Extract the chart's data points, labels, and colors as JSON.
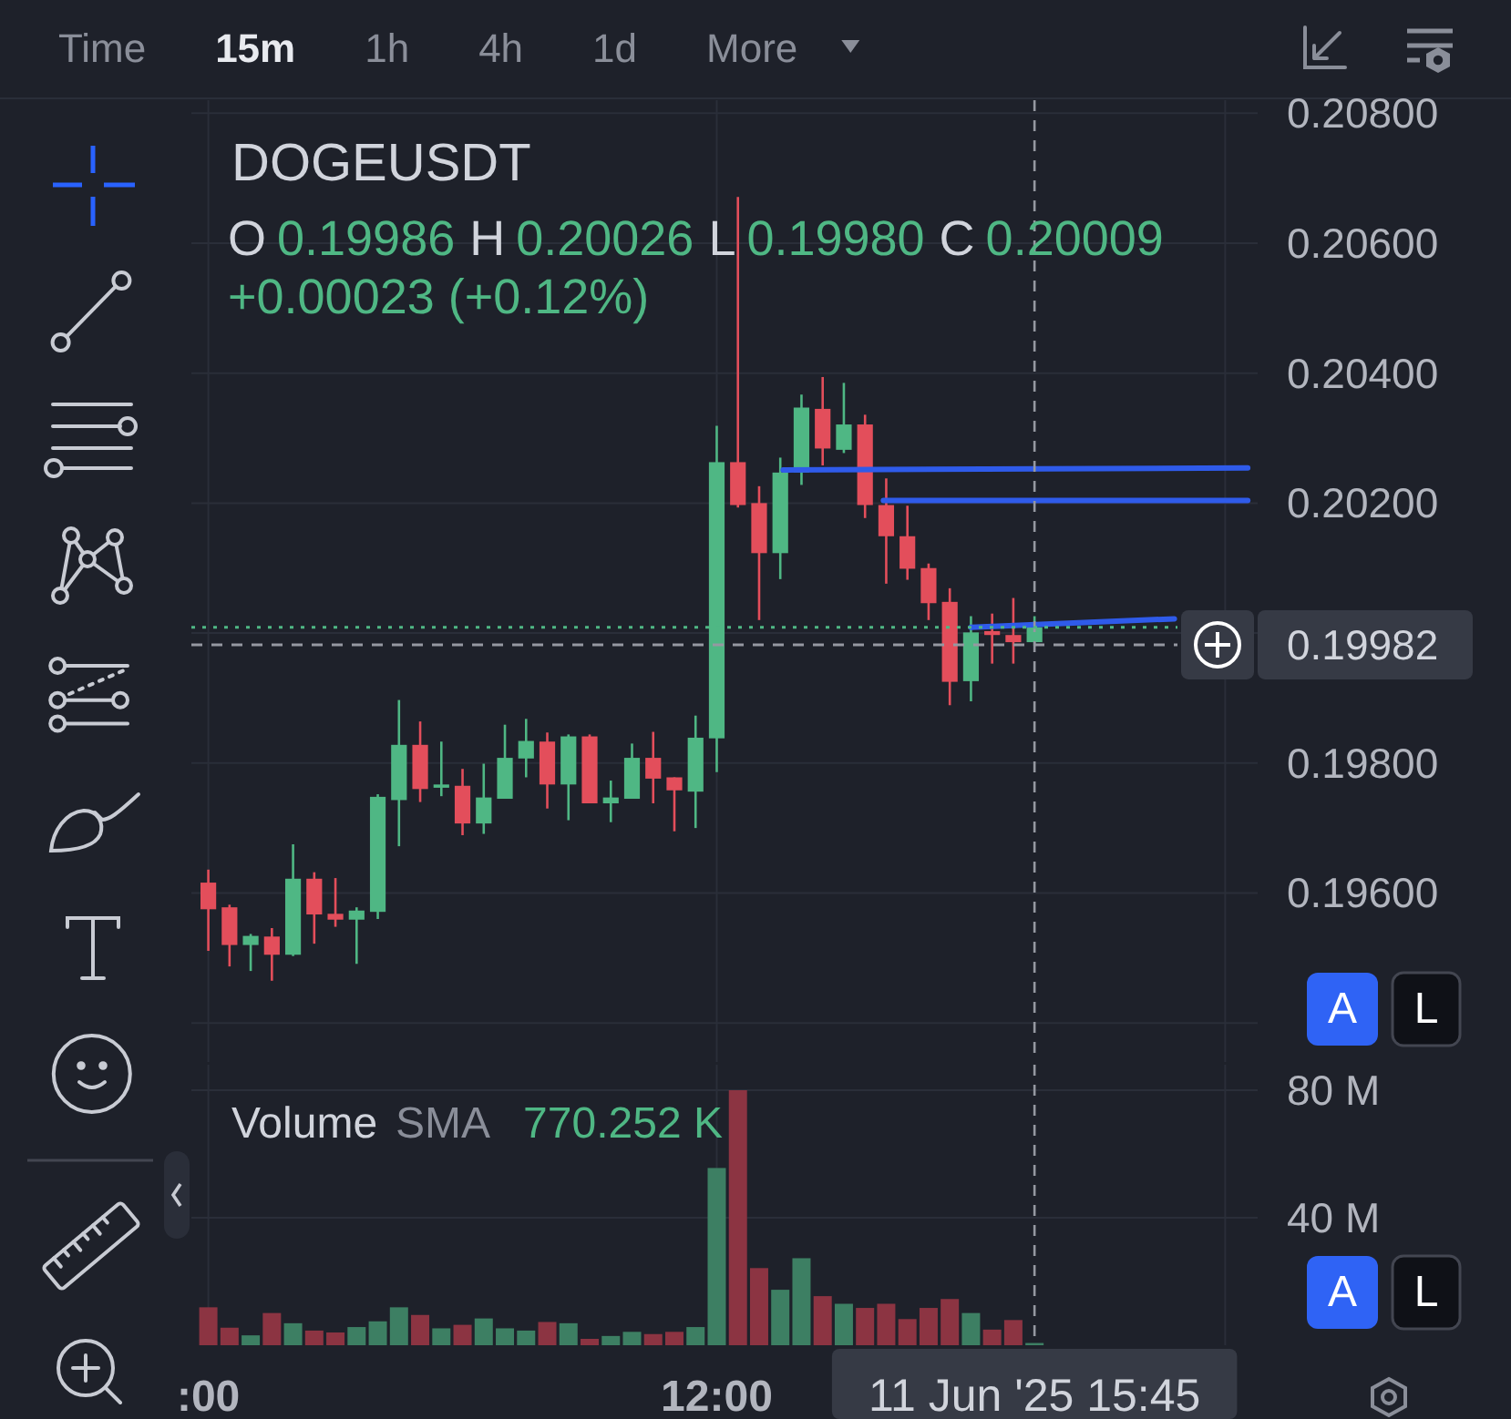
{
  "chart_data": [
    {
      "type": "other",
      "annotations": [
        "Time",
        "15m",
        "1h",
        "4h",
        "1d",
        "More"
      ]
    },
    {
      "type": "candlestick",
      "title": "DOGEUSDT",
      "annotations": [
        "O",
        "0.19986",
        "H",
        "0.20026",
        "L",
        "0.19980",
        "C",
        "0.20009",
        "+0.00023 (+0.12%)",
        "A",
        "L"
      ],
      "x": [
        "2025-06-11T06:00",
        "2025-06-11T06:15",
        "2025-06-11T06:30",
        "2025-06-11T06:45",
        "2025-06-11T07:00",
        "2025-06-11T07:15",
        "2025-06-11T07:30",
        "2025-06-11T07:45",
        "2025-06-11T08:00",
        "2025-06-11T08:15",
        "2025-06-11T08:30",
        "2025-06-11T08:45",
        "2025-06-11T09:00",
        "2025-06-11T09:15",
        "2025-06-11T09:30",
        "2025-06-11T09:45",
        "2025-06-11T10:00",
        "2025-06-11T10:15",
        "2025-06-11T10:30",
        "2025-06-11T10:45",
        "2025-06-11T11:00",
        "2025-06-11T11:15",
        "2025-06-11T11:30",
        "2025-06-11T11:45",
        "2025-06-11T12:00",
        "2025-06-11T12:15",
        "2025-06-11T12:30",
        "2025-06-11T12:45",
        "2025-06-11T13:00",
        "2025-06-11T13:15",
        "2025-06-11T13:30",
        "2025-06-11T13:45",
        "2025-06-11T14:00",
        "2025-06-11T14:15",
        "2025-06-11T14:30",
        "2025-06-11T14:45",
        "2025-06-11T15:00",
        "2025-06-11T15:15",
        "2025-06-11T15:30",
        "2025-06-11T15:45"
      ],
      "ohlc": [
        [
          0.19616,
          0.19636,
          0.19511,
          0.19575
        ],
        [
          0.19578,
          0.19582,
          0.19487,
          0.1952
        ],
        [
          0.1952,
          0.19537,
          0.1948,
          0.19534
        ],
        [
          0.19533,
          0.19546,
          0.19465,
          0.19505
        ],
        [
          0.19505,
          0.19675,
          0.19503,
          0.19622
        ],
        [
          0.19622,
          0.19632,
          0.19522,
          0.19567
        ],
        [
          0.19568,
          0.19623,
          0.19548,
          0.19559
        ],
        [
          0.19559,
          0.19578,
          0.19491,
          0.19573
        ],
        [
          0.19571,
          0.19752,
          0.1956,
          0.19748
        ],
        [
          0.19743,
          0.19897,
          0.19672,
          0.19828
        ],
        [
          0.19828,
          0.19864,
          0.1974,
          0.1976
        ],
        [
          0.19762,
          0.19833,
          0.19749,
          0.19767
        ],
        [
          0.19765,
          0.19791,
          0.19689,
          0.19707
        ],
        [
          0.19707,
          0.19799,
          0.19691,
          0.19747
        ],
        [
          0.19745,
          0.19859,
          0.19745,
          0.19808
        ],
        [
          0.19807,
          0.19868,
          0.19778,
          0.19834
        ],
        [
          0.19833,
          0.19847,
          0.1973,
          0.19767
        ],
        [
          0.19767,
          0.19844,
          0.19712,
          0.19841
        ],
        [
          0.19841,
          0.19844,
          0.19738,
          0.19738
        ],
        [
          0.19738,
          0.19773,
          0.19709,
          0.19747
        ],
        [
          0.19745,
          0.1983,
          0.19745,
          0.19808
        ],
        [
          0.19808,
          0.19848,
          0.19738,
          0.19776
        ],
        [
          0.19778,
          0.19778,
          0.19695,
          0.19758
        ],
        [
          0.19756,
          0.19873,
          0.197,
          0.19839
        ],
        [
          0.19838,
          0.20319,
          0.19786,
          0.20263
        ],
        [
          0.20263,
          0.20671,
          0.20193,
          0.20197
        ],
        [
          0.202,
          0.20226,
          0.2002,
          0.20123
        ],
        [
          0.20123,
          0.2027,
          0.20083,
          0.20247
        ],
        [
          0.20247,
          0.20367,
          0.20228,
          0.20347
        ],
        [
          0.20345,
          0.20394,
          0.20258,
          0.20284
        ],
        [
          0.20282,
          0.20385,
          0.20277,
          0.20321
        ],
        [
          0.20321,
          0.20336,
          0.20177,
          0.20197
        ],
        [
          0.20197,
          0.20238,
          0.20076,
          0.20149
        ],
        [
          0.20149,
          0.20196,
          0.20082,
          0.20099
        ],
        [
          0.201,
          0.20107,
          0.2002,
          0.20046
        ],
        [
          0.20048,
          0.20069,
          0.19889,
          0.19925
        ],
        [
          0.19926,
          0.20026,
          0.19895,
          0.20001
        ],
        [
          0.20003,
          0.2003,
          0.19953,
          0.19997
        ],
        [
          0.19997,
          0.20054,
          0.19953,
          0.19986
        ],
        [
          0.19986,
          0.20026,
          0.1998,
          0.20009
        ]
      ],
      "series": [
        {
          "type": "line",
          "color": "#2f5bea",
          "x": [
            "2025-06-11T12:47",
            "2025-06-11T18:16"
          ],
          "values": [
            0.20251,
            0.20254
          ]
        },
        {
          "type": "line",
          "color": "#2f5bea",
          "x": [
            "2025-06-11T13:58",
            "2025-06-11T18:16"
          ],
          "values": [
            0.20204,
            0.20204
          ]
        },
        {
          "type": "line",
          "color": "#2f5bea",
          "x": [
            "2025-06-11T15:00",
            "2025-06-11T17:24"
          ],
          "values": [
            0.20009,
            0.20022
          ]
        }
      ],
      "xlim": [
        "2025-06-11T05:48",
        "2025-06-11T18:23"
      ],
      "xticks": [
        {
          "value": "2025-06-11T06:00",
          "label": null
        },
        {
          "value": "2025-06-11T12:00",
          "label": null
        },
        {
          "value": "2025-06-11T18:00",
          "label": null
        }
      ],
      "ylim": [
        0.1934,
        0.2082
      ],
      "yticks": [
        {
          "value": 0.194,
          "label": null
        },
        {
          "value": 0.196,
          "label": "0.19600"
        },
        {
          "value": 0.198,
          "label": "0.19800"
        },
        {
          "value": 0.2,
          "label": null
        },
        {
          "value": 0.202,
          "label": "0.20200"
        },
        {
          "value": 0.204,
          "label": "0.20400"
        },
        {
          "value": 0.206,
          "label": "0.20600"
        },
        {
          "value": 0.208,
          "label": "0.20800"
        }
      ],
      "tick_labels": "y",
      "grid": true,
      "ref_lines": [
        {
          "axis": "x",
          "value": "2025-06-11T15:45",
          "color": "#9598a1",
          "line_style": "dashed"
        },
        {
          "axis": "y",
          "value": 0.20009,
          "color": "#4fb784",
          "line_style": "dotted"
        },
        {
          "axis": "y",
          "value": 0.19982,
          "label": "0.19982",
          "color": "#9598a1",
          "line_style": "dashed"
        }
      ]
    },
    {
      "type": "bar",
      "title": "Volume",
      "subtitle": "SMA",
      "annotations": [
        "770.252 K",
        "A",
        "L"
      ],
      "x": [
        "2025-06-11T06:00",
        "2025-06-11T06:15",
        "2025-06-11T06:30",
        "2025-06-11T06:45",
        "2025-06-11T07:00",
        "2025-06-11T07:15",
        "2025-06-11T07:30",
        "2025-06-11T07:45",
        "2025-06-11T08:00",
        "2025-06-11T08:15",
        "2025-06-11T08:30",
        "2025-06-11T08:45",
        "2025-06-11T09:00",
        "2025-06-11T09:15",
        "2025-06-11T09:30",
        "2025-06-11T09:45",
        "2025-06-11T10:00",
        "2025-06-11T10:15",
        "2025-06-11T10:30",
        "2025-06-11T10:45",
        "2025-06-11T11:00",
        "2025-06-11T11:15",
        "2025-06-11T11:30",
        "2025-06-11T11:45",
        "2025-06-11T12:00",
        "2025-06-11T12:15",
        "2025-06-11T12:30",
        "2025-06-11T12:45",
        "2025-06-11T13:00",
        "2025-06-11T13:15",
        "2025-06-11T13:30",
        "2025-06-11T13:45",
        "2025-06-11T14:00",
        "2025-06-11T14:15",
        "2025-06-11T14:30",
        "2025-06-11T14:45",
        "2025-06-11T15:00",
        "2025-06-11T15:15",
        "2025-06-11T15:30",
        "2025-06-11T15:45"
      ],
      "values": [
        11.9,
        5.5,
        3.1,
        10.1,
        6.9,
        4.6,
        4.0,
        5.7,
        7.5,
        11.9,
        9.5,
        5.3,
        6.4,
        8.4,
        5.3,
        4.6,
        7.3,
        6.9,
        2.0,
        2.9,
        4.2,
        3.5,
        4.2,
        5.7,
        55.6,
        80,
        24.2,
        17.4,
        27.3,
        15.4,
        13.0,
        11.7,
        13.0,
        8.2,
        11.7,
        14.5,
        10.1,
        4.9,
        7.9,
        0.7
      ],
      "colors": [
        "#8c3442",
        "#8c3442",
        "#3d7f63",
        "#8c3442",
        "#3d7f63",
        "#8c3442",
        "#8c3442",
        "#3d7f63",
        "#3d7f63",
        "#3d7f63",
        "#8c3442",
        "#3d7f63",
        "#8c3442",
        "#3d7f63",
        "#3d7f63",
        "#3d7f63",
        "#8c3442",
        "#3d7f63",
        "#8c3442",
        "#3d7f63",
        "#3d7f63",
        "#8c3442",
        "#8c3442",
        "#3d7f63",
        "#3d7f63",
        "#8c3442",
        "#8c3442",
        "#3d7f63",
        "#3d7f63",
        "#8c3442",
        "#3d7f63",
        "#8c3442",
        "#8c3442",
        "#8c3442",
        "#8c3442",
        "#8c3442",
        "#3d7f63",
        "#8c3442",
        "#8c3442",
        "#3d7f63"
      ],
      "xlim": [
        "2025-06-11T05:48",
        "2025-06-11T18:23"
      ],
      "xticks": [
        {
          "value": "2025-06-11T06:00",
          "label": ":00"
        },
        {
          "value": "2025-06-11T12:00",
          "label": "12:00"
        },
        {
          "value": "2025-06-11T18:00",
          "label": null
        }
      ],
      "ylim": [
        0,
        88
      ],
      "yticks": [
        {
          "value": 40,
          "label": "40 M"
        },
        {
          "value": 80,
          "label": "80 M"
        }
      ],
      "grid": true,
      "ref_lines": [
        {
          "axis": "x",
          "value": "2025-06-11T15:45",
          "label": "11 Jun '25 15:45",
          "color": "#9598a1",
          "line_style": "dashed"
        }
      ]
    }
  ]
}
